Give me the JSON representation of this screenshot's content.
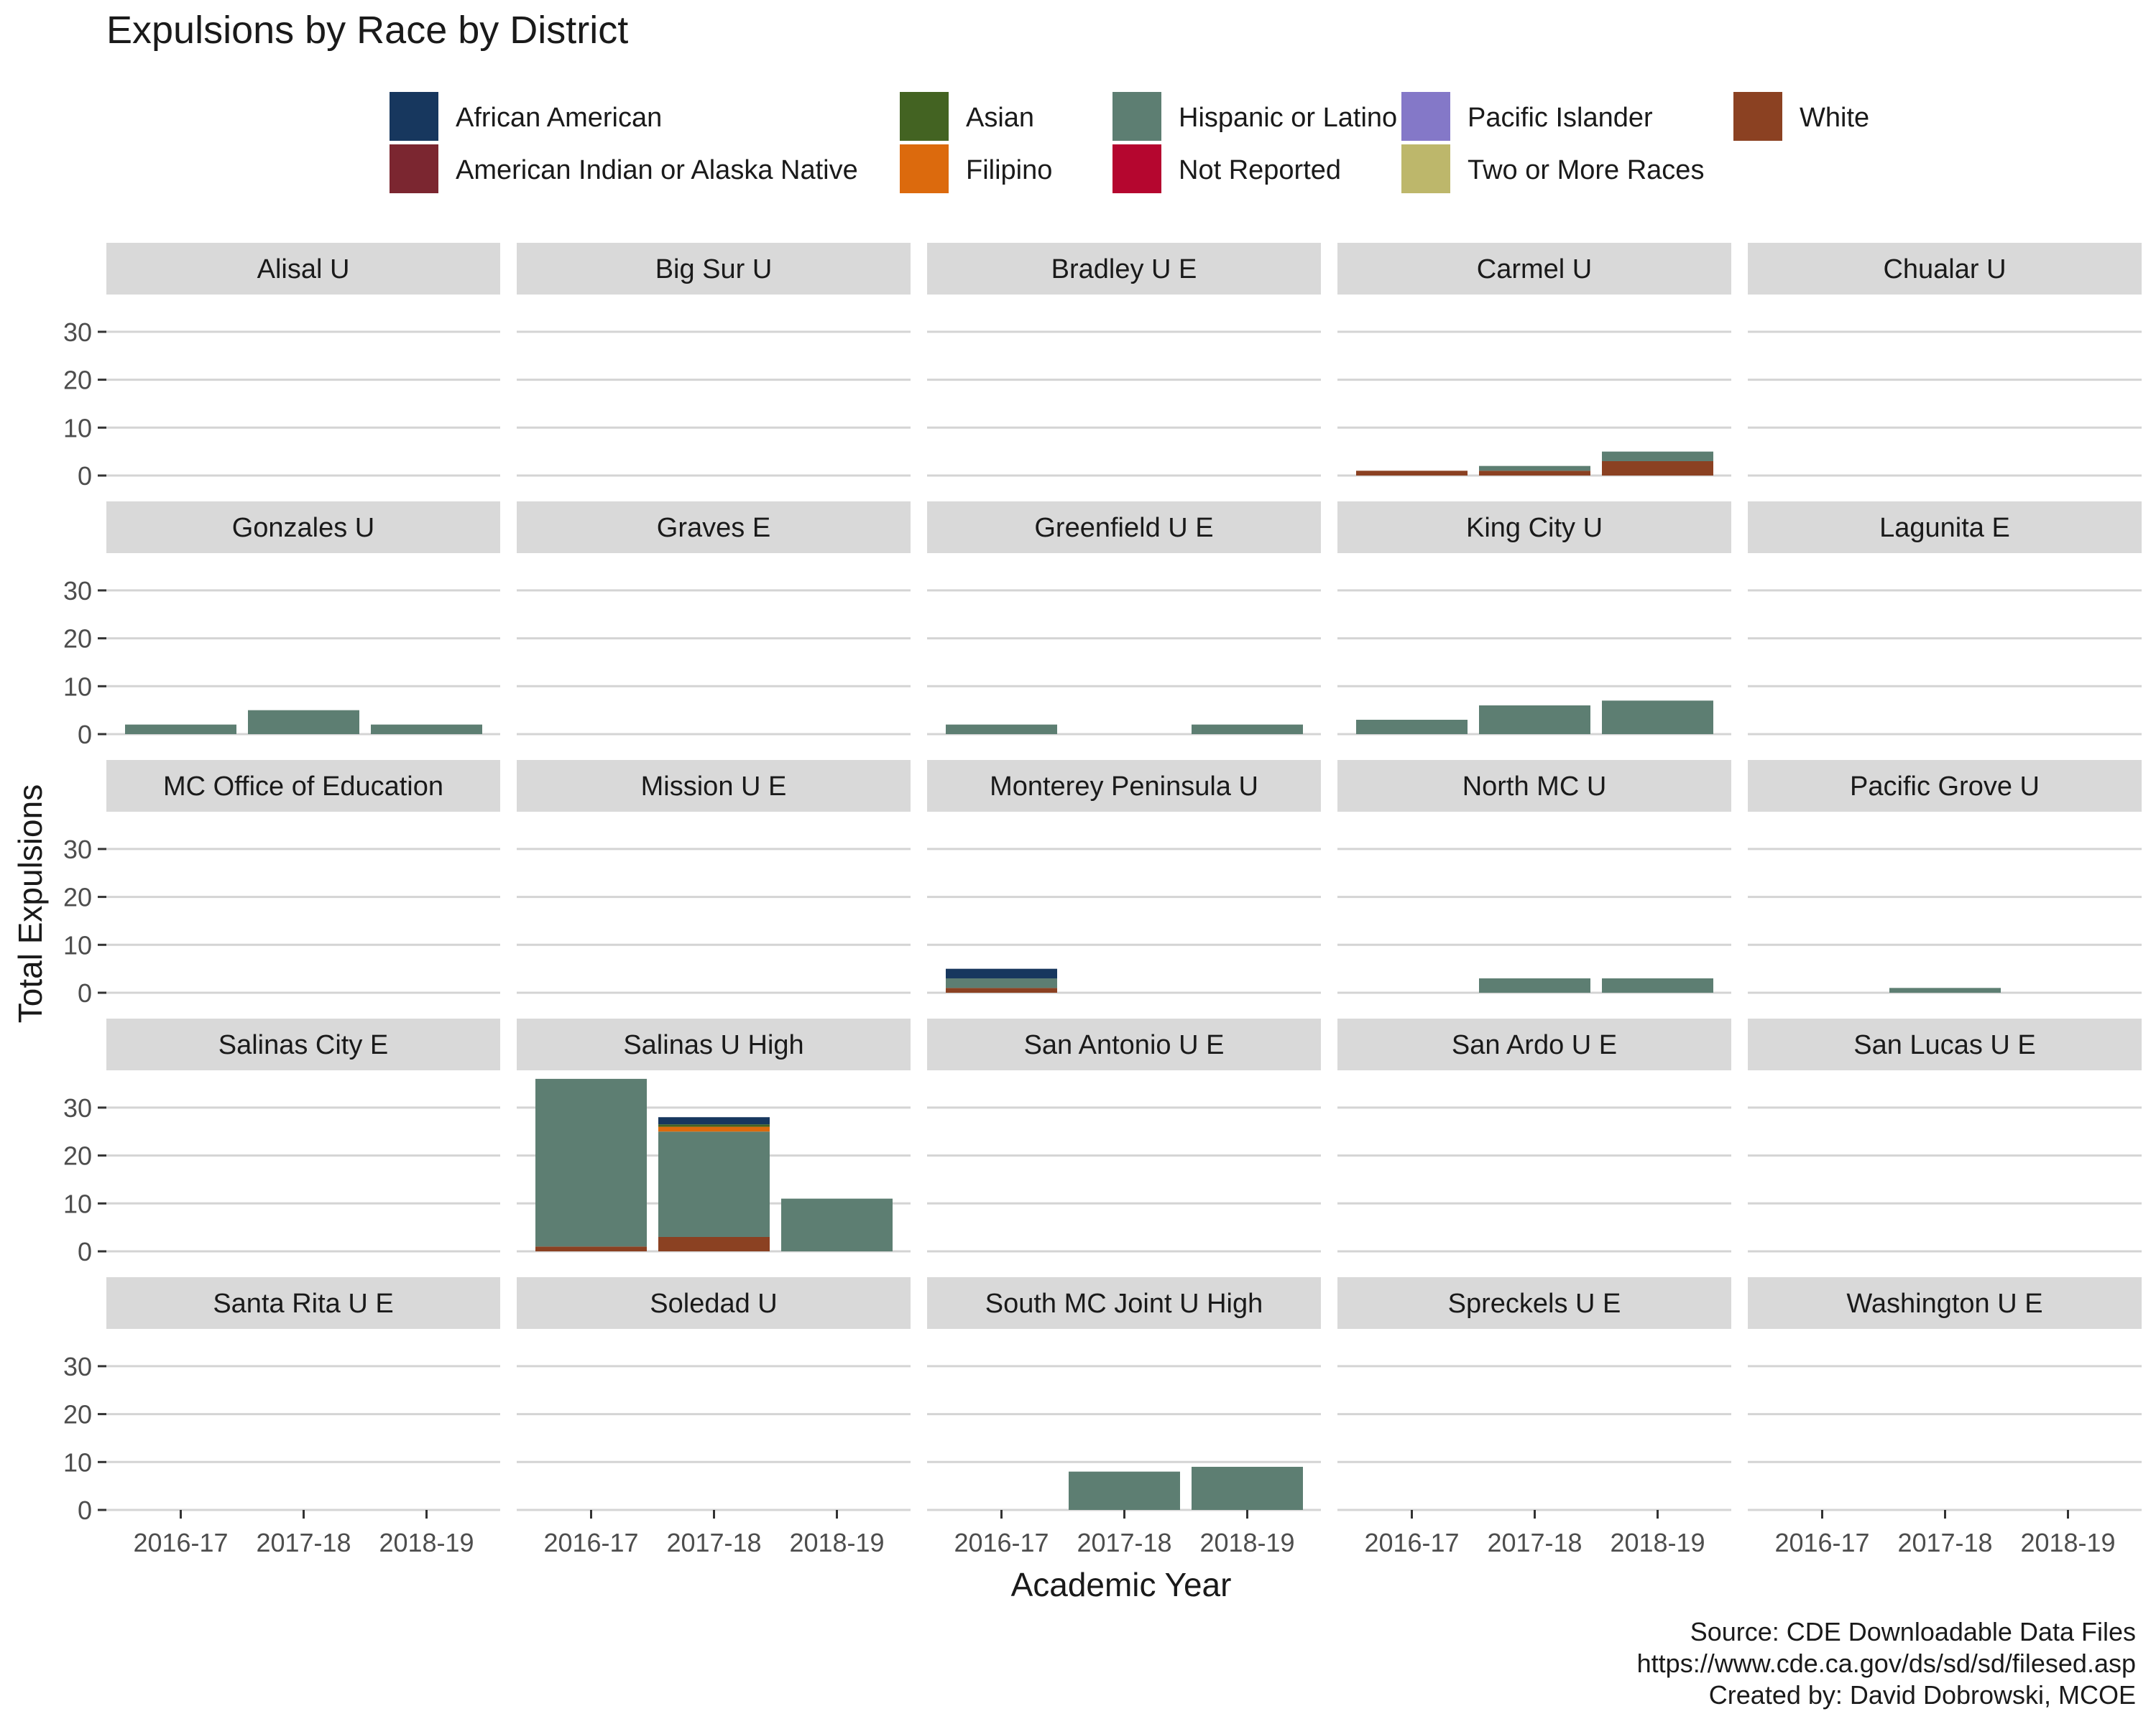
{
  "chart_data": {
    "type": "bar",
    "stacked": true,
    "faceted": true,
    "title": "Expulsions by Race by District",
    "xlabel": "Academic Year",
    "ylabel": "Total Expulsions",
    "ylim": [
      0,
      36
    ],
    "yticks": [
      0,
      10,
      20,
      30
    ],
    "grid": "horizontal",
    "legend_position": "top",
    "categories": [
      "2016-17",
      "2017-18",
      "2018-19"
    ],
    "legend": [
      {
        "name": "African American",
        "color": "#17375e"
      },
      {
        "name": "American Indian or Alaska Native",
        "color": "#7b2630"
      },
      {
        "name": "Asian",
        "color": "#436322"
      },
      {
        "name": "Filipino",
        "color": "#dc6a0d"
      },
      {
        "name": "Hispanic or Latino",
        "color": "#5d7e72"
      },
      {
        "name": "Not Reported",
        "color": "#b5062f"
      },
      {
        "name": "Pacific Islander",
        "color": "#8478c8"
      },
      {
        "name": "Two or More Races",
        "color": "#bdb76b"
      },
      {
        "name": "White",
        "color": "#8b4122"
      }
    ],
    "panels": [
      {
        "name": "Alisal U",
        "bars": [
          [],
          [],
          []
        ]
      },
      {
        "name": "Big Sur U",
        "bars": [
          [],
          [],
          []
        ]
      },
      {
        "name": "Bradley U E",
        "bars": [
          [],
          [],
          []
        ]
      },
      {
        "name": "Carmel U",
        "bars": [
          [
            {
              "race": "White",
              "value": 1
            }
          ],
          [
            {
              "race": "White",
              "value": 1
            },
            {
              "race": "Hispanic or Latino",
              "value": 1
            }
          ],
          [
            {
              "race": "White",
              "value": 3
            },
            {
              "race": "Hispanic or Latino",
              "value": 2
            }
          ]
        ]
      },
      {
        "name": "Chualar U",
        "bars": [
          [],
          [],
          []
        ]
      },
      {
        "name": "Gonzales U",
        "bars": [
          [
            {
              "race": "Hispanic or Latino",
              "value": 2
            }
          ],
          [
            {
              "race": "Hispanic or Latino",
              "value": 5
            }
          ],
          [
            {
              "race": "Hispanic or Latino",
              "value": 2
            }
          ]
        ]
      },
      {
        "name": "Graves E",
        "bars": [
          [],
          [],
          []
        ]
      },
      {
        "name": "Greenfield U E",
        "bars": [
          [
            {
              "race": "Hispanic or Latino",
              "value": 2
            }
          ],
          [],
          [
            {
              "race": "Hispanic or Latino",
              "value": 2
            }
          ]
        ]
      },
      {
        "name": "King City U",
        "bars": [
          [
            {
              "race": "Hispanic or Latino",
              "value": 3
            }
          ],
          [
            {
              "race": "Hispanic or Latino",
              "value": 6
            }
          ],
          [
            {
              "race": "Hispanic or Latino",
              "value": 7
            }
          ]
        ]
      },
      {
        "name": "Lagunita E",
        "bars": [
          [],
          [],
          []
        ]
      },
      {
        "name": "MC Office of Education",
        "bars": [
          [],
          [],
          []
        ]
      },
      {
        "name": "Mission U E",
        "bars": [
          [],
          [],
          []
        ]
      },
      {
        "name": "Monterey Peninsula U",
        "bars": [
          [
            {
              "race": "White",
              "value": 1
            },
            {
              "race": "Hispanic or Latino",
              "value": 2
            },
            {
              "race": "African American",
              "value": 2
            }
          ],
          [],
          []
        ]
      },
      {
        "name": "North MC U",
        "bars": [
          [],
          [
            {
              "race": "Hispanic or Latino",
              "value": 3
            }
          ],
          [
            {
              "race": "Hispanic or Latino",
              "value": 3
            }
          ]
        ]
      },
      {
        "name": "Pacific Grove U",
        "bars": [
          [],
          [
            {
              "race": "Hispanic or Latino",
              "value": 1
            }
          ],
          []
        ]
      },
      {
        "name": "Salinas City E",
        "bars": [
          [],
          [],
          []
        ]
      },
      {
        "name": "Salinas U High",
        "bars": [
          [
            {
              "race": "White",
              "value": 1
            },
            {
              "race": "Hispanic or Latino",
              "value": 35
            }
          ],
          [
            {
              "race": "White",
              "value": 3
            },
            {
              "race": "Hispanic or Latino",
              "value": 22
            },
            {
              "race": "Filipino",
              "value": 1
            },
            {
              "race": "Asian",
              "value": 0.5
            },
            {
              "race": "African American",
              "value": 1.5
            }
          ],
          [
            {
              "race": "Hispanic or Latino",
              "value": 11
            }
          ]
        ]
      },
      {
        "name": "San Antonio U E",
        "bars": [
          [],
          [],
          []
        ]
      },
      {
        "name": "San Ardo U E",
        "bars": [
          [],
          [],
          []
        ]
      },
      {
        "name": "San Lucas U E",
        "bars": [
          [],
          [],
          []
        ]
      },
      {
        "name": "Santa Rita U E",
        "bars": [
          [],
          [],
          []
        ]
      },
      {
        "name": "Soledad U",
        "bars": [
          [],
          [],
          []
        ]
      },
      {
        "name": "South MC Joint U High",
        "bars": [
          [],
          [
            {
              "race": "Hispanic or Latino",
              "value": 8
            }
          ],
          [
            {
              "race": "Hispanic or Latino",
              "value": 9
            }
          ]
        ]
      },
      {
        "name": "Spreckels U E",
        "bars": [
          [],
          [],
          []
        ]
      },
      {
        "name": "Washington U E",
        "bars": [
          [],
          [],
          []
        ]
      }
    ],
    "caption": [
      "Source: CDE Downloadable Data Files",
      "https://www.cde.ca.gov/ds/sd/sd/filesed.asp",
      "Created by: David Dobrowski, MCOE"
    ]
  }
}
